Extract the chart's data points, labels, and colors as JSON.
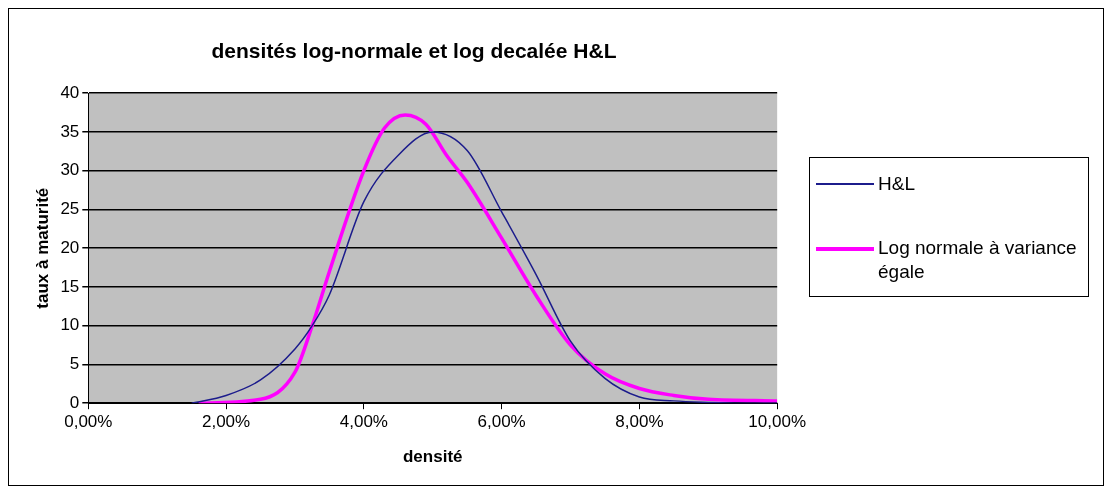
{
  "chart_data": {
    "type": "line",
    "title": "densités log-normale et log decalée H&L",
    "xlabel": "densité",
    "ylabel": "taux à maturité",
    "xlim": [
      0,
      10
    ],
    "xticks": [
      {
        "value": 0,
        "label": "0,00%"
      },
      {
        "value": 2,
        "label": "2,00%"
      },
      {
        "value": 4,
        "label": "4,00%"
      },
      {
        "value": 6,
        "label": "6,00%"
      },
      {
        "value": 8,
        "label": "8,00%"
      },
      {
        "value": 10,
        "label": "10,00%"
      }
    ],
    "ylim": [
      0,
      40
    ],
    "yticks": [
      0,
      5,
      10,
      15,
      20,
      25,
      30,
      35,
      40
    ],
    "grid": "y",
    "legend": "right",
    "marker": "none",
    "series": [
      {
        "name": "H&L",
        "color": "#1c1c8c",
        "x": [
          1.5,
          2,
          2.5,
          3,
          3.25,
          3.5,
          4,
          4.5,
          5,
          5.5,
          6,
          6.5,
          7,
          7.5,
          8,
          8.5,
          9,
          9.5,
          10
        ],
        "values": [
          0,
          1,
          3,
          7,
          10,
          14,
          26,
          32,
          35,
          32.6,
          24.7,
          16.6,
          8,
          3.2,
          0.8,
          0.3,
          0.1,
          0,
          0
        ]
      },
      {
        "name": "Log normale à variance égale",
        "color": "#ff00ff",
        "x": [
          1.6,
          2.5,
          3,
          3.25,
          3.5,
          4,
          4.3,
          4.6,
          4.9,
          5.2,
          5.5,
          6,
          6.5,
          7,
          7.5,
          8,
          8.5,
          9,
          10
        ],
        "values": [
          0,
          0.5,
          4,
          10,
          17,
          30,
          35.5,
          37.2,
          36,
          32,
          28.5,
          21.3,
          13.9,
          7.5,
          3.8,
          1.9,
          1,
          0.5,
          0.3
        ]
      }
    ]
  }
}
